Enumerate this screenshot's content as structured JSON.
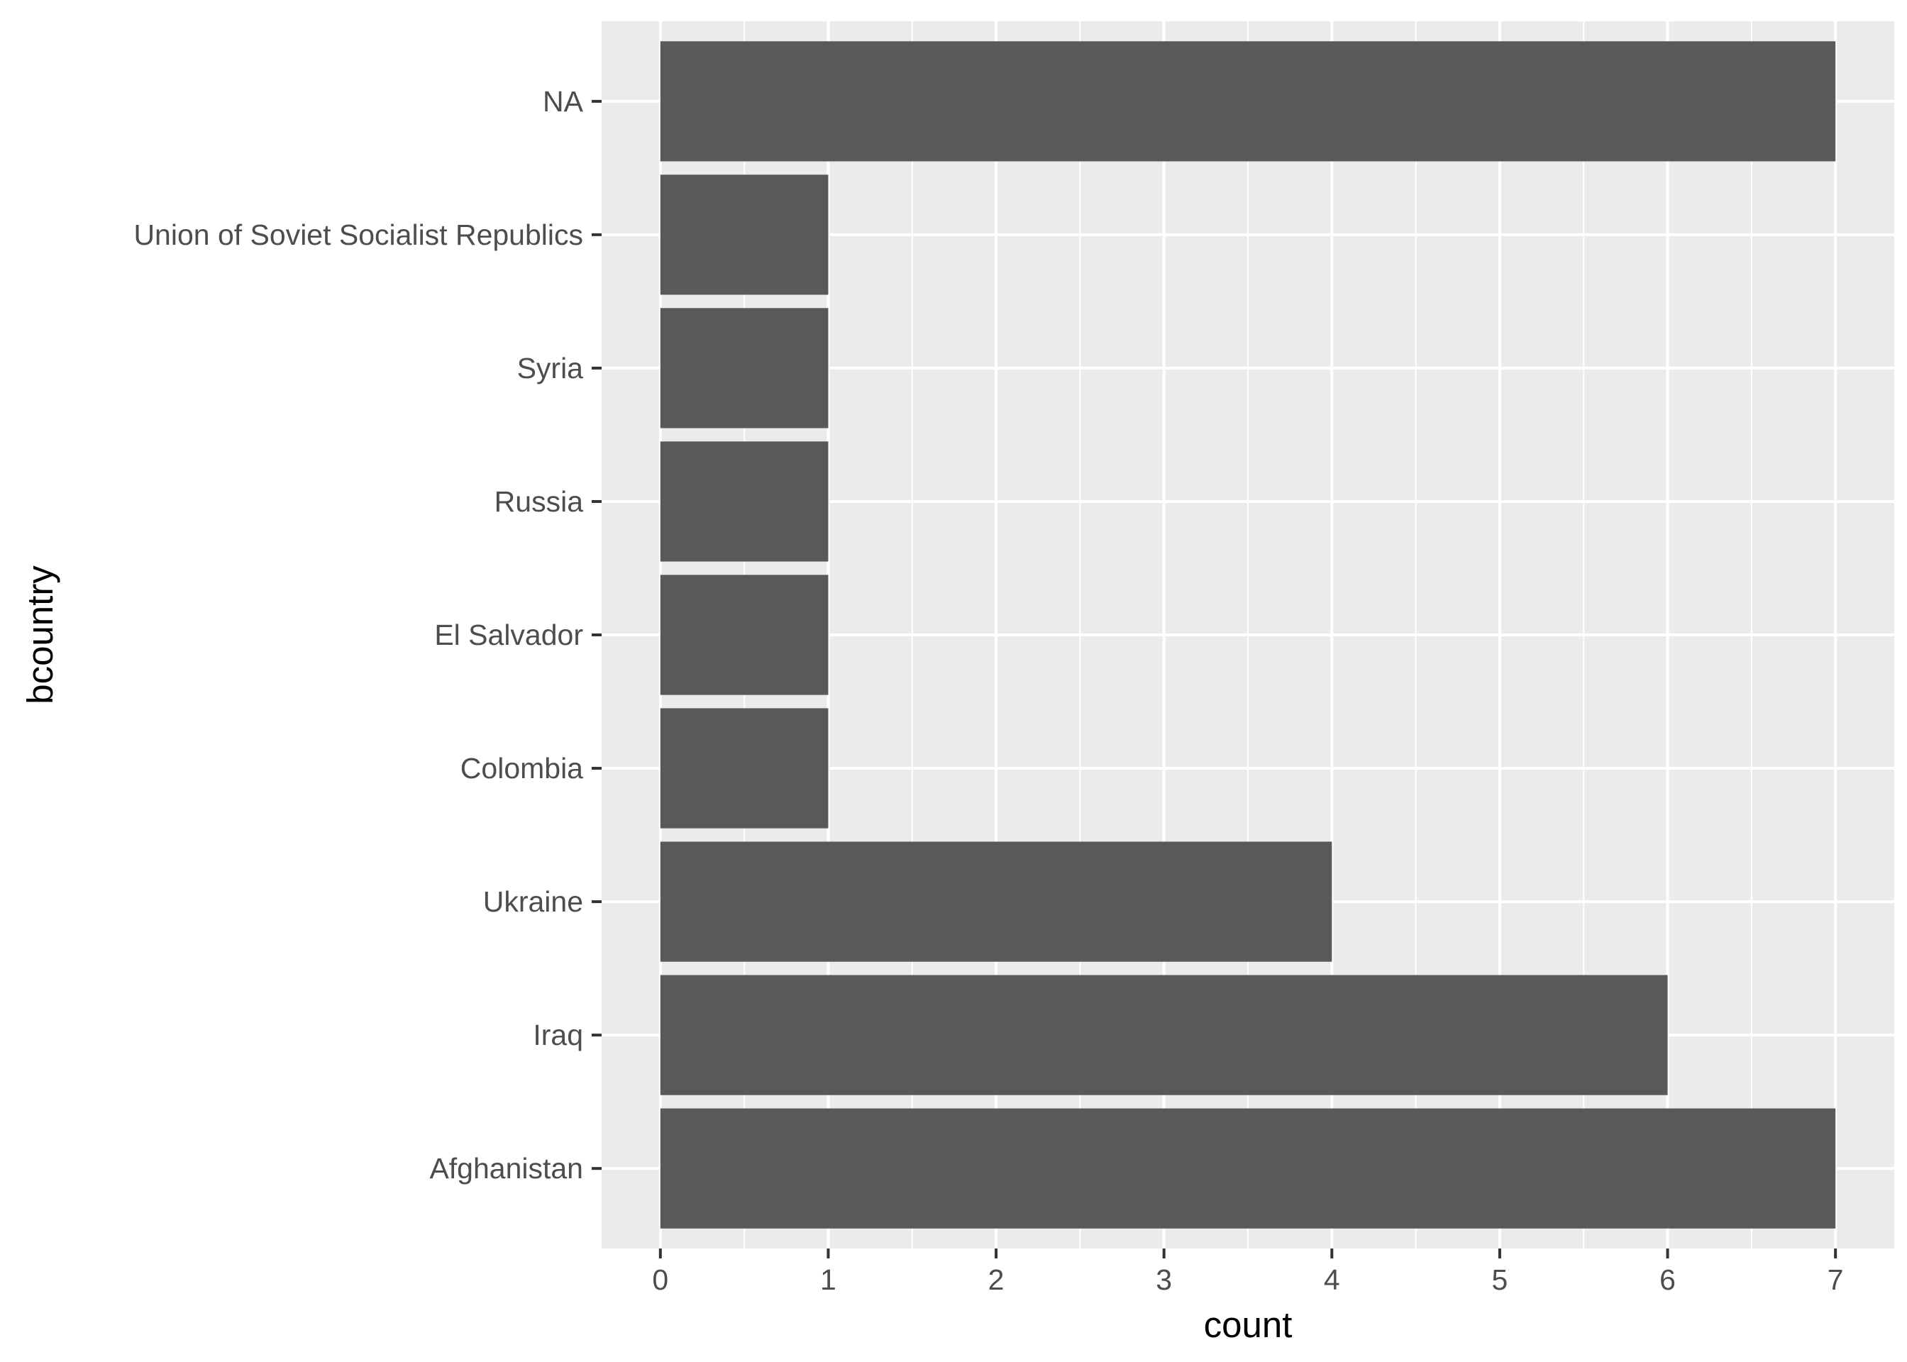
{
  "chart_data": {
    "type": "bar",
    "orientation": "horizontal",
    "categories": [
      "Afghanistan",
      "Iraq",
      "Ukraine",
      "Colombia",
      "El Salvador",
      "Russia",
      "Syria",
      "Union of Soviet Socialist Republics",
      "NA"
    ],
    "values": [
      7,
      6,
      4,
      1,
      1,
      1,
      1,
      1,
      7
    ],
    "xlabel": "count",
    "ylabel": "bcountry",
    "xlim": [
      -0.35,
      7.35
    ],
    "x_ticks": [
      0,
      1,
      2,
      3,
      4,
      5,
      6,
      7
    ],
    "x_tick_labels": [
      "0",
      "1",
      "2",
      "3",
      "4",
      "5",
      "6",
      "7"
    ],
    "grid": true,
    "bar_color": "#595959",
    "panel_color": "#ebebeb",
    "grid_color": "#ffffff"
  }
}
